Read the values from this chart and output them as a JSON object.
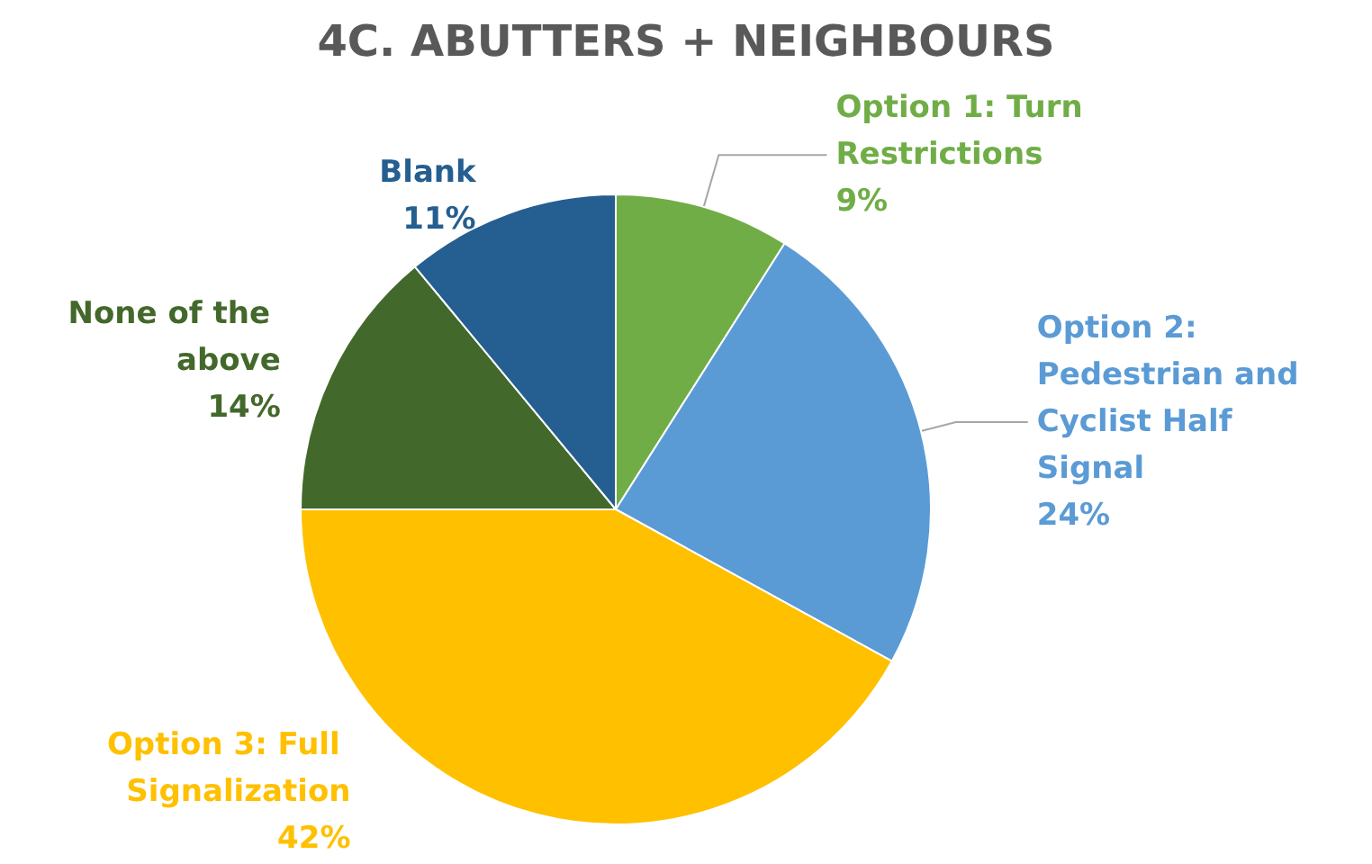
{
  "chart_data": {
    "type": "pie",
    "title": "4C. ABUTTERS + NEIGHBOURS",
    "categories": [
      "Option 1: Turn Restrictions",
      "Option 2: Pedestrian and Cyclist Half Signal",
      "Option 3: Full Signalization",
      "None of the above",
      "Blank"
    ],
    "values": [
      9,
      24,
      42,
      14,
      11
    ],
    "colors": [
      "#70ad47",
      "#5b9bd5",
      "#ffc000",
      "#43682b",
      "#255e91"
    ],
    "value_labels": [
      "9%",
      "24%",
      "42%",
      "14%",
      "11%"
    ]
  }
}
